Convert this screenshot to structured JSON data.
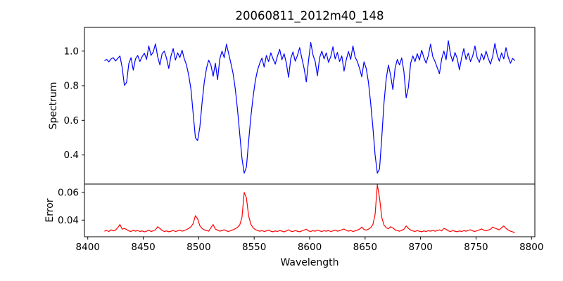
{
  "title": "20060811_2012m40_148",
  "chart_data": {
    "type": "line",
    "title": "20060811_2012m40_148",
    "xlabel": "Wavelength",
    "grid": false,
    "legend": false,
    "background": "#ffffff",
    "spine_color": "#000000",
    "xlim": [
      8397,
      8803
    ],
    "x_ticks": [
      8400,
      8450,
      8500,
      8550,
      8600,
      8650,
      8700,
      8750,
      8800
    ],
    "x_tick_labels": [
      "8400",
      "8450",
      "8500",
      "8550",
      "8600",
      "8650",
      "8700",
      "8750",
      "8800"
    ],
    "x_start": 8415,
    "x_step": 2,
    "panels": [
      {
        "name": "spectrum",
        "ylabel": "Spectrum",
        "ylim": [
          0.232,
          1.137
        ],
        "y_ticks": [
          0.4,
          0.6,
          0.8,
          1.0
        ],
        "y_tick_labels": [
          "0.4",
          "0.6",
          "0.8",
          "1.0"
        ],
        "color": "#0000ff",
        "absorption_line_centers": [
          8434,
          8498,
          8542,
          8662,
          8675,
          8688
        ],
        "values": [
          0.945,
          0.952,
          0.938,
          0.955,
          0.962,
          0.943,
          0.958,
          0.972,
          0.905,
          0.802,
          0.82,
          0.928,
          0.962,
          0.89,
          0.955,
          0.975,
          0.94,
          0.968,
          0.988,
          0.952,
          1.03,
          0.975,
          0.995,
          1.042,
          0.968,
          0.92,
          0.985,
          1.0,
          0.958,
          0.9,
          0.972,
          1.015,
          0.948,
          0.99,
          0.963,
          1.005,
          0.955,
          0.92,
          0.86,
          0.78,
          0.64,
          0.5,
          0.483,
          0.56,
          0.7,
          0.82,
          0.9,
          0.948,
          0.92,
          0.855,
          0.93,
          0.835,
          0.955,
          1.0,
          0.962,
          1.04,
          0.985,
          0.93,
          0.87,
          0.78,
          0.66,
          0.52,
          0.38,
          0.295,
          0.33,
          0.48,
          0.62,
          0.735,
          0.828,
          0.89,
          0.93,
          0.96,
          0.908,
          0.975,
          0.94,
          0.99,
          0.955,
          0.925,
          0.972,
          1.01,
          0.95,
          0.985,
          0.93,
          0.848,
          0.958,
          0.995,
          0.942,
          0.975,
          1.02,
          0.958,
          0.9,
          0.822,
          0.945,
          1.05,
          0.978,
          0.94,
          0.858,
          0.962,
          1.0,
          0.955,
          0.99,
          0.935,
          0.968,
          1.025,
          0.955,
          0.992,
          0.94,
          0.972,
          0.885,
          0.95,
          0.998,
          0.952,
          1.03,
          0.965,
          0.94,
          0.9,
          0.852,
          0.938,
          0.9,
          0.82,
          0.7,
          0.56,
          0.4,
          0.295,
          0.32,
          0.5,
          0.7,
          0.84,
          0.92,
          0.86,
          0.778,
          0.9,
          0.952,
          0.92,
          0.96,
          0.88,
          0.73,
          0.79,
          0.928,
          0.972,
          0.94,
          0.985,
          0.948,
          1.005,
          0.962,
          0.93,
          0.975,
          1.04,
          0.968,
          0.94,
          0.905,
          0.87,
          0.955,
          1.0,
          0.95,
          1.06,
          0.98,
          0.94,
          0.992,
          0.958,
          0.892,
          0.962,
          1.015,
          0.952,
          0.988,
          0.94,
          0.972,
          1.03,
          0.962,
          0.935,
          0.985,
          0.95,
          1.0,
          0.958,
          0.925,
          0.97,
          1.045,
          0.978,
          0.942,
          0.99,
          0.955,
          1.02,
          0.965,
          0.93,
          0.958,
          0.945
        ]
      },
      {
        "name": "error",
        "ylabel": "Error",
        "ylim": [
          0.028,
          0.066
        ],
        "y_ticks": [
          0.04,
          0.06
        ],
        "y_tick_labels": [
          "0.04",
          "0.06"
        ],
        "color": "#ff0000",
        "peak_centers": [
          8497,
          8541,
          8661
        ],
        "values": [
          0.032,
          0.0325,
          0.0318,
          0.033,
          0.0322,
          0.0328,
          0.0345,
          0.0368,
          0.0335,
          0.034,
          0.0332,
          0.0322,
          0.0318,
          0.0328,
          0.032,
          0.0325,
          0.0318,
          0.0322,
          0.0315,
          0.032,
          0.0328,
          0.0318,
          0.0323,
          0.033,
          0.0352,
          0.034,
          0.0325,
          0.0318,
          0.0322,
          0.0316,
          0.032,
          0.0325,
          0.0318,
          0.0322,
          0.0328,
          0.032,
          0.0325,
          0.0332,
          0.034,
          0.0352,
          0.0375,
          0.0432,
          0.041,
          0.036,
          0.034,
          0.033,
          0.0325,
          0.032,
          0.0345,
          0.0368,
          0.0335,
          0.0328,
          0.032,
          0.0325,
          0.033,
          0.0322,
          0.0318,
          0.0325,
          0.033,
          0.0338,
          0.0348,
          0.0365,
          0.042,
          0.06,
          0.056,
          0.043,
          0.037,
          0.0345,
          0.0332,
          0.0325,
          0.032,
          0.0324,
          0.0318,
          0.0322,
          0.0328,
          0.032,
          0.0316,
          0.0322,
          0.0318,
          0.0325,
          0.032,
          0.0315,
          0.0322,
          0.033,
          0.032,
          0.0318,
          0.0324,
          0.032,
          0.0316,
          0.0322,
          0.0328,
          0.0334,
          0.0322,
          0.0318,
          0.0324,
          0.032,
          0.0328,
          0.0322,
          0.0318,
          0.0324,
          0.032,
          0.0325,
          0.0318,
          0.0322,
          0.0328,
          0.032,
          0.0324,
          0.033,
          0.0336,
          0.0326,
          0.032,
          0.0325,
          0.0318,
          0.0322,
          0.0328,
          0.0335,
          0.035,
          0.0332,
          0.0328,
          0.0335,
          0.0345,
          0.0368,
          0.044,
          0.0655,
          0.056,
          0.042,
          0.0365,
          0.0345,
          0.0338,
          0.0352,
          0.0344,
          0.033,
          0.0324,
          0.032,
          0.0326,
          0.0334,
          0.0358,
          0.034,
          0.0328,
          0.0322,
          0.0318,
          0.0324,
          0.032,
          0.0316,
          0.0322,
          0.0318,
          0.0324,
          0.032,
          0.0326,
          0.032,
          0.0324,
          0.033,
          0.0322,
          0.034,
          0.0334,
          0.0322,
          0.0318,
          0.0324,
          0.032,
          0.0316,
          0.0322,
          0.0318,
          0.0324,
          0.032,
          0.0326,
          0.033,
          0.0322,
          0.0318,
          0.0324,
          0.033,
          0.0336,
          0.0328,
          0.0322,
          0.0328,
          0.0334,
          0.035,
          0.0342,
          0.0336,
          0.033,
          0.0345,
          0.0358,
          0.034,
          0.0328,
          0.032,
          0.0315,
          0.031
        ]
      }
    ]
  }
}
